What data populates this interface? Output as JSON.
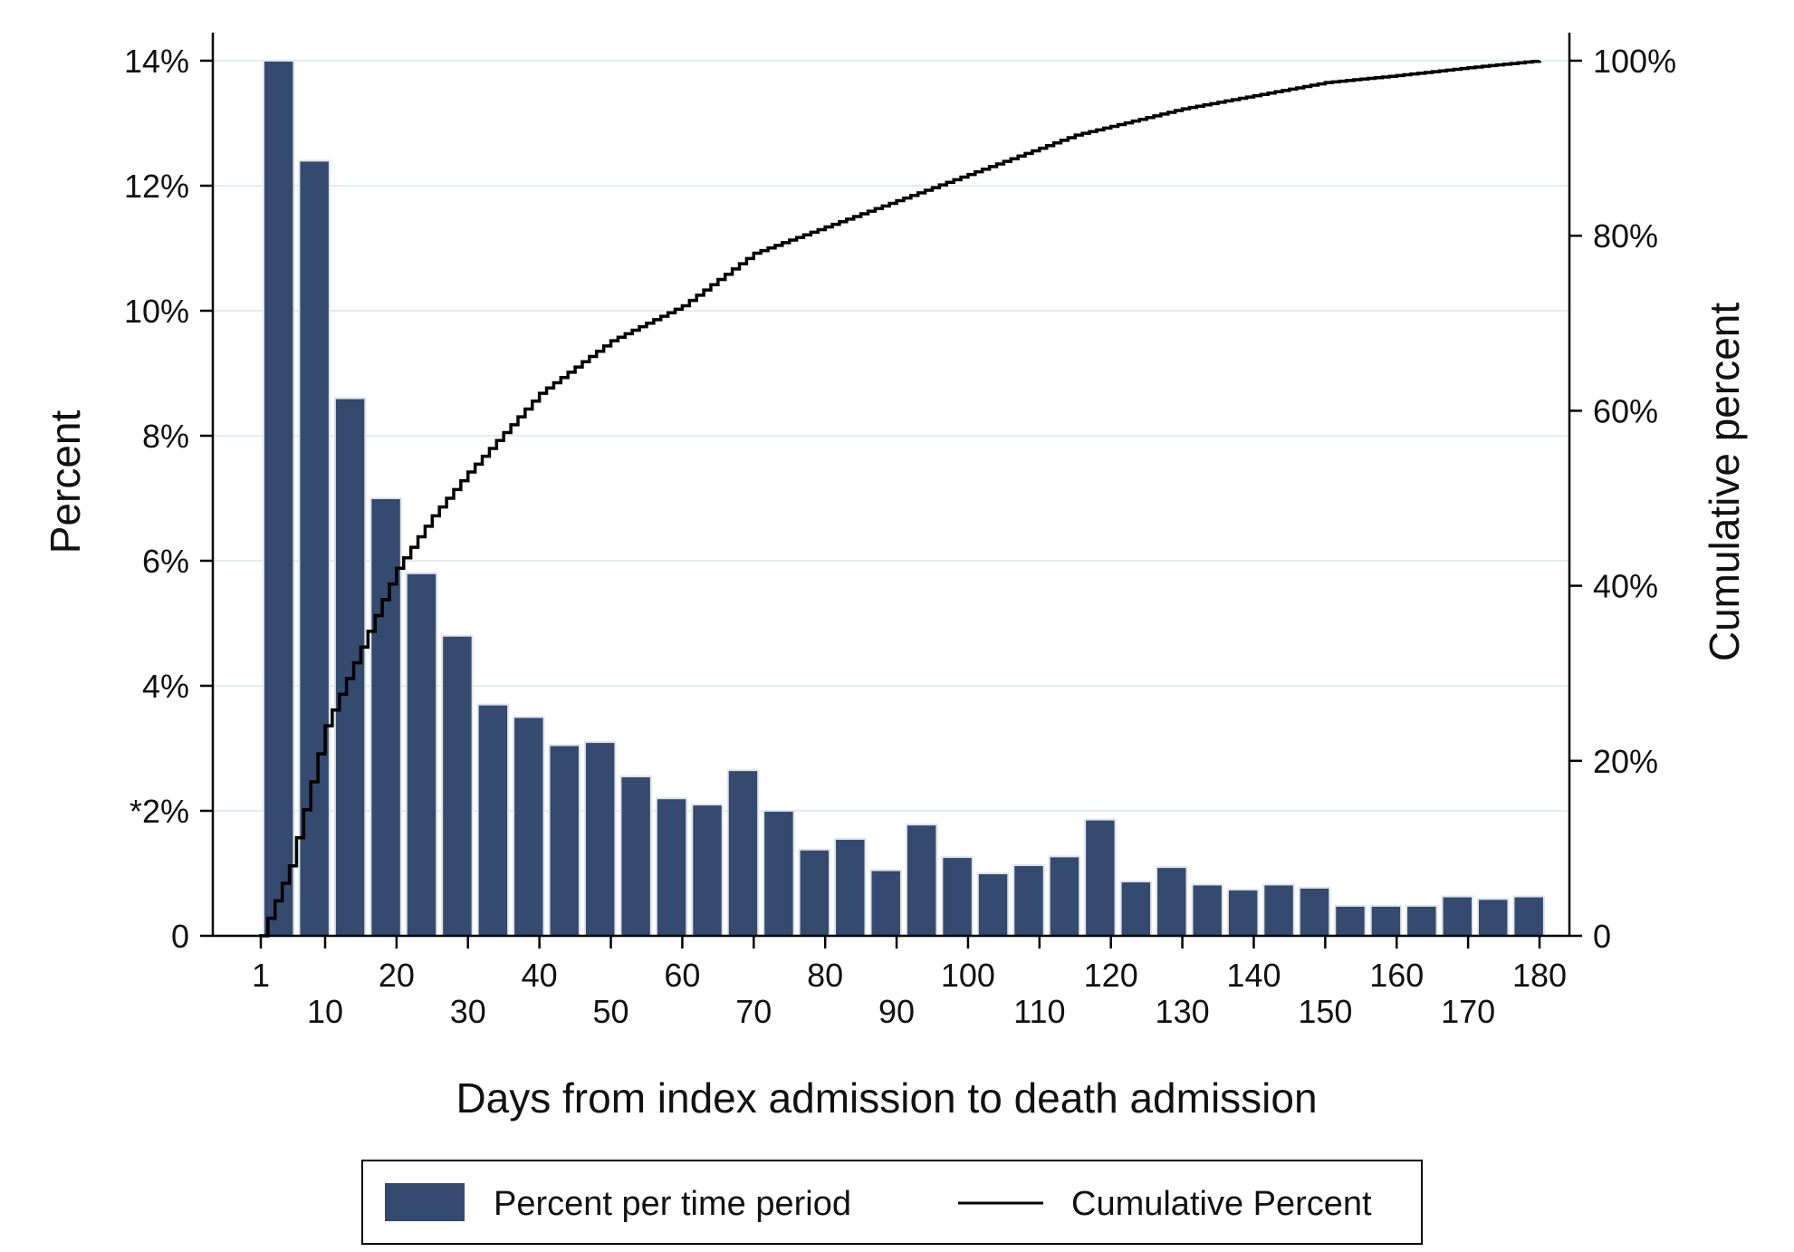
{
  "chart_data": {
    "type": "bar",
    "title": "",
    "xlabel": "Days from index admission to death admission",
    "ylabel_left": "Percent",
    "ylabel_right": "Cumulative percent",
    "x_range": [
      1,
      180
    ],
    "ylim_left": [
      0,
      14
    ],
    "ylim_right": [
      0,
      100
    ],
    "x_ticks_top": [
      "1",
      "20",
      "40",
      "60",
      "80",
      "100",
      "120",
      "140",
      "160",
      "180"
    ],
    "x_ticks_bottom": [
      "10",
      "30",
      "50",
      "70",
      "90",
      "110",
      "130",
      "150",
      "170"
    ],
    "y_ticks_left": [
      {
        "value": 0,
        "label": "0"
      },
      {
        "value": 2,
        "label": "*2%"
      },
      {
        "value": 4,
        "label": "4%"
      },
      {
        "value": 6,
        "label": "6%"
      },
      {
        "value": 8,
        "label": "8%"
      },
      {
        "value": 10,
        "label": "10%"
      },
      {
        "value": 12,
        "label": "12%"
      },
      {
        "value": 14,
        "label": "14%"
      }
    ],
    "y_ticks_right": [
      {
        "value": 0,
        "label": "0"
      },
      {
        "value": 20,
        "label": "20%"
      },
      {
        "value": 40,
        "label": "40%"
      },
      {
        "value": 60,
        "label": "60%"
      },
      {
        "value": 80,
        "label": "80%"
      },
      {
        "value": 100,
        "label": "100%"
      }
    ],
    "grid": true,
    "legend_position": "bottom",
    "series": [
      {
        "name": "Percent per time period",
        "type": "bar",
        "color": "#344a6e",
        "bin_width": 5,
        "bin_start": 1,
        "values": [
          14.0,
          12.4,
          8.6,
          7.0,
          5.8,
          4.8,
          3.7,
          3.5,
          3.05,
          3.1,
          2.55,
          2.2,
          2.1,
          2.65,
          2.0,
          1.38,
          1.55,
          1.05,
          1.78,
          1.26,
          1.0,
          1.13,
          1.27,
          1.86,
          0.87,
          1.1,
          0.82,
          0.74,
          0.82,
          0.77,
          0.48,
          0.48,
          0.48,
          0.63,
          0.59,
          0.63
        ]
      },
      {
        "name": "Cumulative Percent",
        "type": "line",
        "color": "#000000",
        "x": [
          1,
          5,
          10,
          15,
          20,
          25,
          30,
          40,
          50,
          60,
          70,
          80,
          90,
          100,
          110,
          115,
          120,
          130,
          140,
          150,
          160,
          170,
          180
        ],
        "values": [
          0,
          8,
          24,
          33,
          42,
          48,
          53,
          62,
          68,
          72,
          78,
          81,
          84,
          87,
          90,
          91.5,
          92.5,
          94.5,
          96,
          97.5,
          98.3,
          99.2,
          100
        ]
      }
    ]
  }
}
